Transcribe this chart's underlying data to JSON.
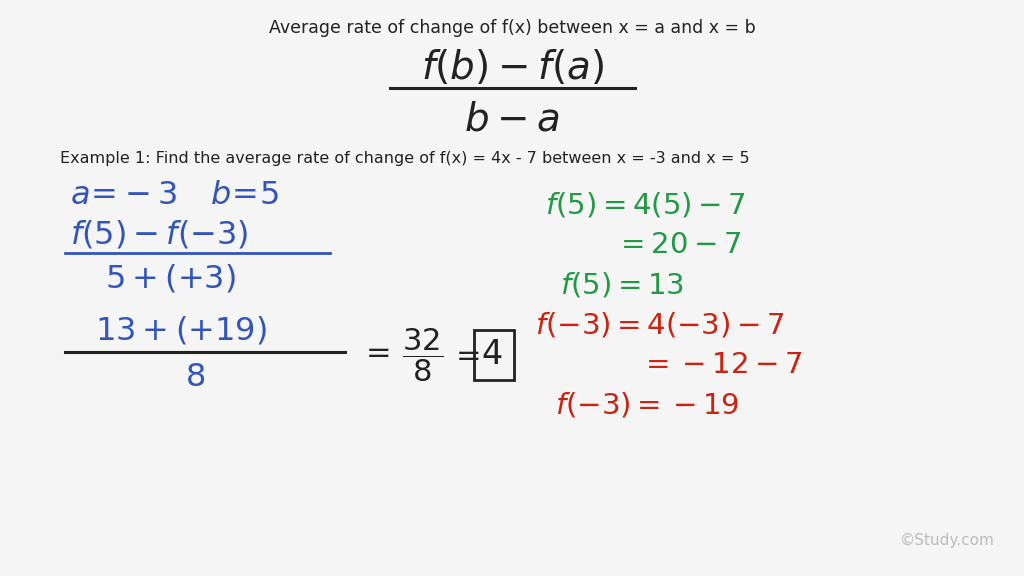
{
  "background_color": "#f5f5f5",
  "title_text": "Average rate of change of f(x) between x = a and x = b",
  "title_color": "#333333",
  "title_fontsize": 12.5,
  "formula_color": "#222222",
  "example_text": "Example 1: Find the average rate of change of f(x) = 4x - 7 between x = -3 and x = 5",
  "example_color": "#222222",
  "example_fontsize": 11.5,
  "blue_color": "#3355bb",
  "green_color": "#229944",
  "red_color": "#cc2211",
  "dark_color": "#222222",
  "watermark": "Study.com",
  "watermark_color": "#bbbbbb"
}
